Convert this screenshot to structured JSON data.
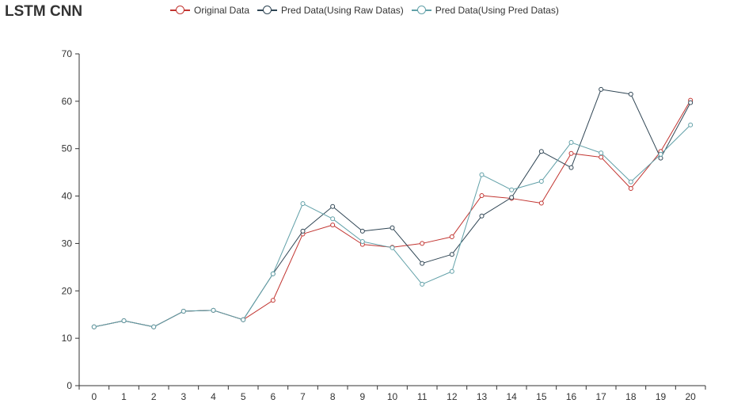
{
  "chart_data": {
    "type": "line",
    "title": "LSTM CNN",
    "xlabel": "",
    "ylabel": "",
    "categories": [
      "0",
      "1",
      "2",
      "3",
      "4",
      "5",
      "6",
      "7",
      "8",
      "9",
      "10",
      "11",
      "12",
      "13",
      "14",
      "15",
      "16",
      "17",
      "18",
      "19",
      "20"
    ],
    "y_ticks": [
      "0",
      "10",
      "20",
      "30",
      "40",
      "50",
      "60",
      "70"
    ],
    "ylim": [
      0,
      70
    ],
    "grid": false,
    "legend_position": "top",
    "series": [
      {
        "name": "Original Data",
        "color": "#c23531",
        "values": [
          12.4,
          13.7,
          12.4,
          15.7,
          15.9,
          13.9,
          18.0,
          32.0,
          33.9,
          29.8,
          29.2,
          30.0,
          31.4,
          40.1,
          39.5,
          38.5,
          49.0,
          48.2,
          41.6,
          49.4,
          60.2
        ]
      },
      {
        "name": "Pred Data(Using Raw Datas)",
        "color": "#2f4554",
        "values": [
          12.4,
          13.7,
          12.4,
          15.7,
          15.9,
          13.9,
          23.6,
          32.6,
          37.8,
          32.6,
          33.3,
          25.8,
          27.7,
          35.8,
          39.7,
          49.4,
          46.0,
          62.5,
          61.5,
          48.0,
          59.7
        ]
      },
      {
        "name": "Pred Data(Using Pred Datas)",
        "color": "#61a0a8",
        "values": [
          12.4,
          13.7,
          12.4,
          15.7,
          15.9,
          13.9,
          23.6,
          38.4,
          35.2,
          30.4,
          29.1,
          21.4,
          24.1,
          44.5,
          41.3,
          43.1,
          51.3,
          49.1,
          43.0,
          48.8,
          55.0
        ]
      }
    ]
  }
}
